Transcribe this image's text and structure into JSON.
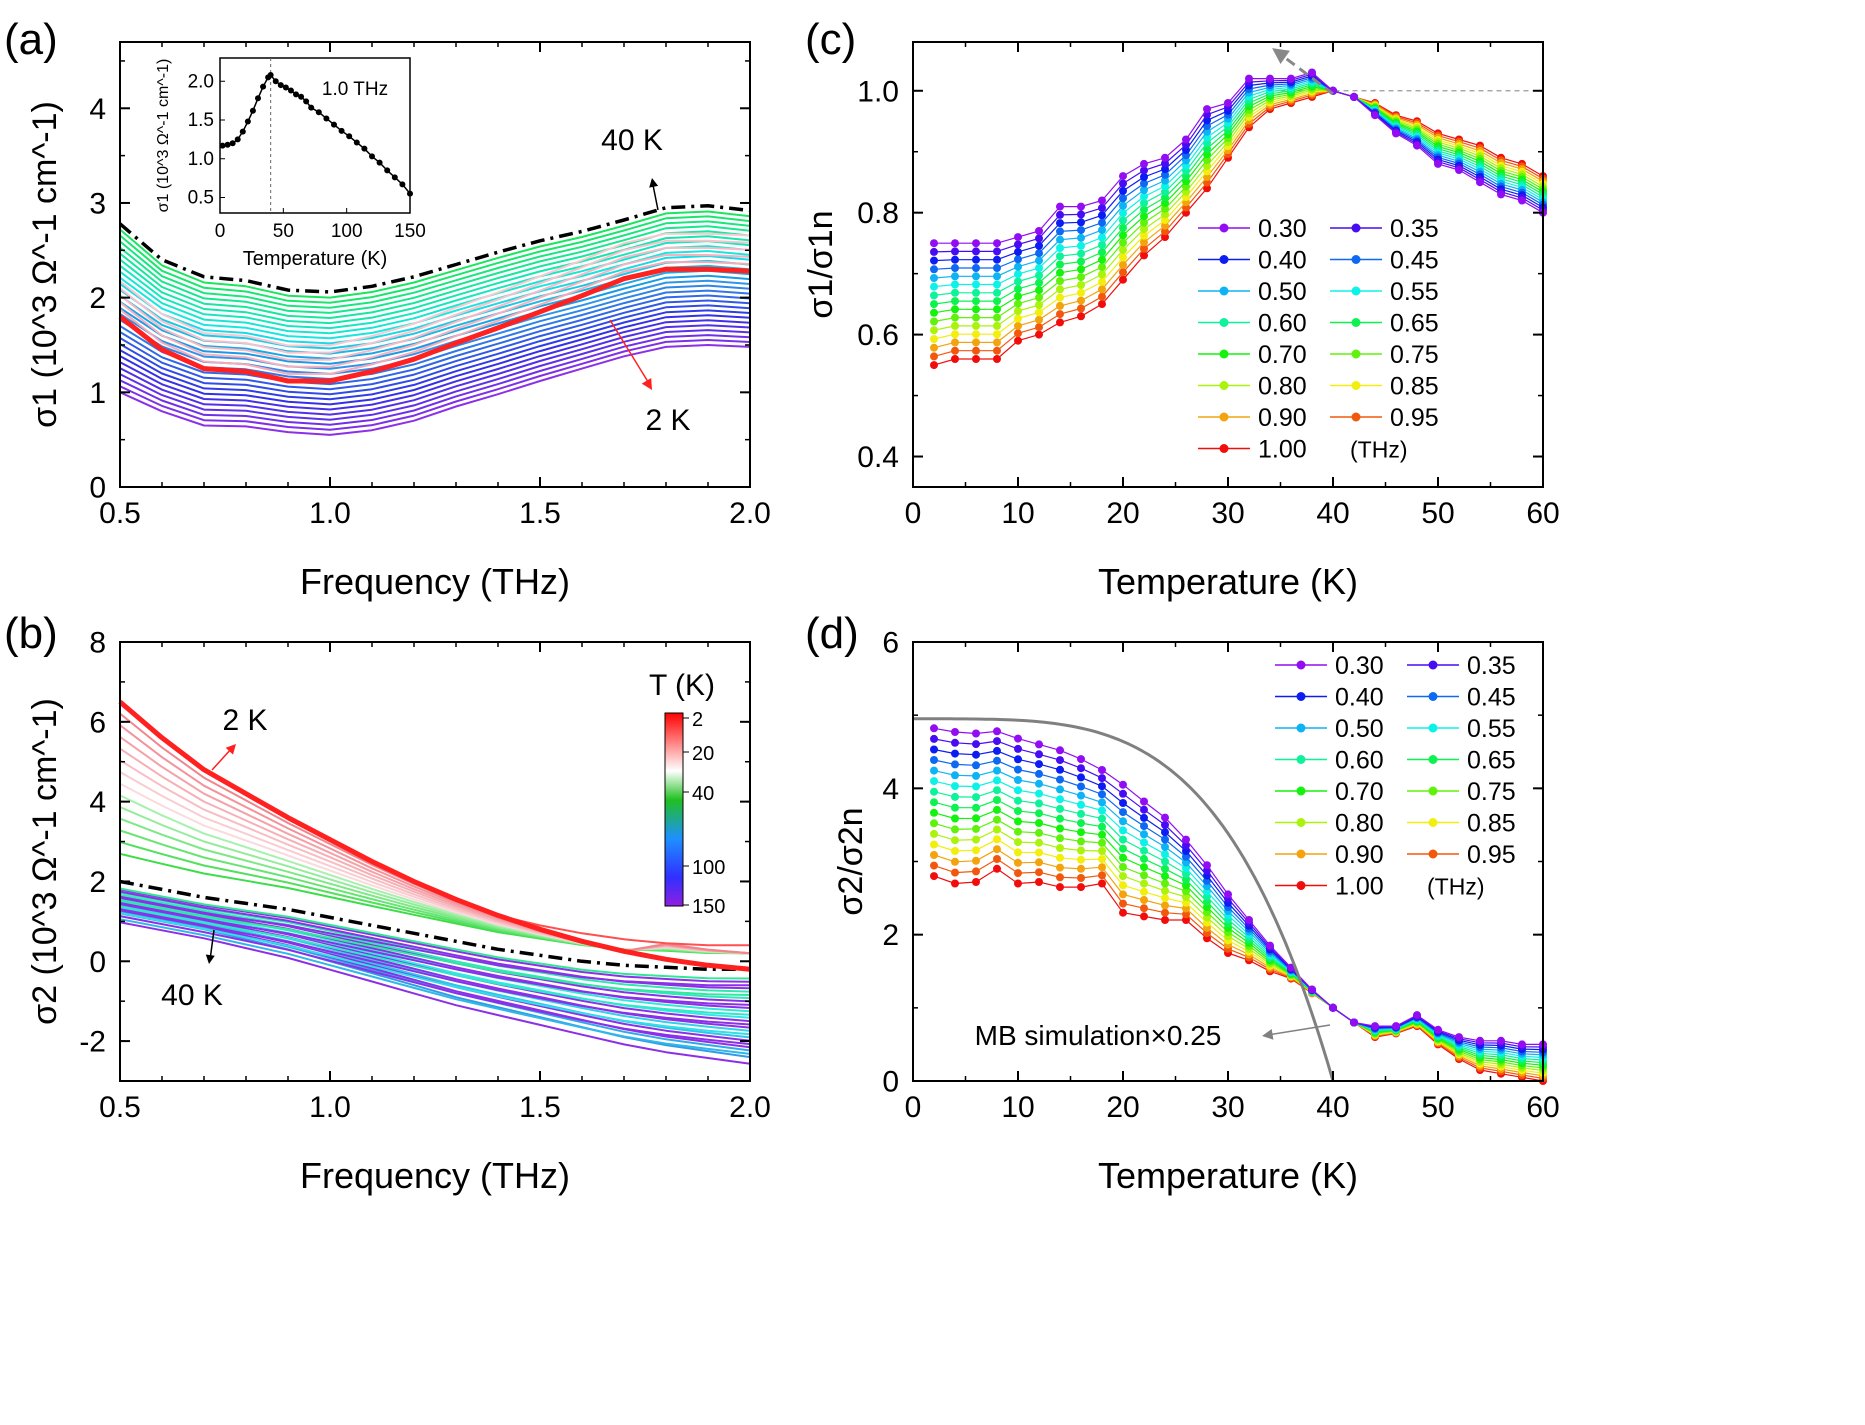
{
  "chart_data": [
    {
      "panel": "(a)",
      "type": "line",
      "xlabel": "Frequency (THz)",
      "ylabel": "σ1 (10^3 Ω^-1 cm^-1)",
      "xlim": [
        0.5,
        2.0
      ],
      "ylim": [
        0,
        4.7
      ],
      "xticks": [
        "0.5",
        "1.0",
        "1.5",
        "2.0"
      ],
      "yticks": [
        "0",
        "1",
        "2",
        "3",
        "4"
      ],
      "x": [
        0.5,
        0.6,
        0.7,
        0.8,
        0.9,
        1.0,
        1.1,
        1.2,
        1.3,
        1.4,
        1.5,
        1.6,
        1.7,
        1.8,
        1.9,
        2.0
      ],
      "series": [
        {
          "name": "2 K",
          "color": "#ff2020",
          "values": [
            1.8,
            1.45,
            1.25,
            1.22,
            1.12,
            1.12,
            1.22,
            1.35,
            1.52,
            1.68,
            1.85,
            2.02,
            2.2,
            2.3,
            2.3,
            2.28
          ]
        },
        {
          "name": "40 K",
          "color": "#000000",
          "values": [
            2.78,
            2.4,
            2.22,
            2.18,
            2.08,
            2.06,
            2.12,
            2.22,
            2.35,
            2.48,
            2.6,
            2.7,
            2.82,
            2.95,
            2.97,
            2.92
          ]
        },
        {
          "name": "150 K",
          "color": "#8a2be2",
          "values": [
            1.0,
            0.8,
            0.65,
            0.64,
            0.58,
            0.55,
            0.6,
            0.7,
            0.85,
            0.98,
            1.12,
            1.25,
            1.38,
            1.48,
            1.5,
            1.48
          ]
        }
      ],
      "labels": {
        "hot": "40 K",
        "cold": "2 K"
      },
      "inset": {
        "ylabel": "σ1 (10^3 Ω^-1 cm^-1)",
        "xlabel": "Temperature (K)",
        "annotation": "1.0 THz",
        "xlim": [
          0,
          150
        ],
        "ylim": [
          0.3,
          2.3
        ],
        "xticks": [
          "0",
          "50",
          "100",
          "150"
        ],
        "yticks": [
          "0.5",
          "1.0",
          "1.5",
          "2.0"
        ],
        "x": [
          2,
          6,
          10,
          14,
          18,
          22,
          26,
          30,
          34,
          38,
          40,
          44,
          48,
          52,
          56,
          60,
          64,
          68,
          72,
          78,
          84,
          90,
          96,
          102,
          108,
          114,
          120,
          126,
          132,
          138,
          144,
          150
        ],
        "values": [
          1.17,
          1.18,
          1.2,
          1.25,
          1.35,
          1.48,
          1.62,
          1.78,
          1.93,
          2.05,
          2.08,
          2.0,
          1.95,
          1.92,
          1.88,
          1.83,
          1.8,
          1.74,
          1.66,
          1.6,
          1.52,
          1.44,
          1.36,
          1.29,
          1.21,
          1.13,
          1.03,
          0.95,
          0.85,
          0.76,
          0.67,
          0.55
        ]
      }
    },
    {
      "panel": "(b)",
      "type": "line",
      "xlabel": "Frequency (THz)",
      "ylabel": "σ2 (10^3 Ω^-1 cm^-1)",
      "xlim": [
        0.5,
        2.0
      ],
      "ylim": [
        -3,
        8
      ],
      "xticks": [
        "0.5",
        "1.0",
        "1.5",
        "2.0"
      ],
      "yticks": [
        "-2",
        "0",
        "2",
        "4",
        "6",
        "8"
      ],
      "x": [
        0.5,
        0.6,
        0.7,
        0.8,
        0.9,
        1.0,
        1.1,
        1.2,
        1.3,
        1.4,
        1.5,
        1.6,
        1.7,
        1.8,
        1.9,
        2.0
      ],
      "series": [
        {
          "name": "2 K",
          "color": "#ff2020",
          "values": [
            6.5,
            5.6,
            4.8,
            4.2,
            3.6,
            3.05,
            2.5,
            2.0,
            1.55,
            1.15,
            0.8,
            0.5,
            0.25,
            0.05,
            -0.1,
            -0.2
          ]
        },
        {
          "name": "40 K",
          "color": "#000000",
          "values": [
            2.0,
            1.8,
            1.6,
            1.45,
            1.3,
            1.1,
            0.9,
            0.7,
            0.5,
            0.3,
            0.15,
            0.0,
            -0.1,
            -0.15,
            -0.2,
            -0.2
          ]
        },
        {
          "name": "150 K",
          "color": "#1e90ff",
          "values": [
            1.2,
            1.0,
            0.8,
            0.55,
            0.3,
            0.0,
            -0.3,
            -0.6,
            -0.9,
            -1.15,
            -1.4,
            -1.65,
            -1.9,
            -2.1,
            -2.25,
            -2.4
          ]
        }
      ],
      "labels": {
        "cold": "2 K",
        "hot": "40 K"
      },
      "colorbar": {
        "title": "T (K)",
        "ticks": [
          "2",
          "20",
          "40",
          "100",
          "150"
        ]
      }
    },
    {
      "panel": "(c)",
      "type": "line",
      "xlabel": "Temperature (K)",
      "ylabel": "σ1/σ1n",
      "xlim": [
        0,
        60
      ],
      "ylim": [
        0.35,
        1.08
      ],
      "xticks": [
        "0",
        "10",
        "20",
        "30",
        "40",
        "50",
        "60"
      ],
      "yticks": [
        "0.4",
        "0.6",
        "0.8",
        "1.0"
      ],
      "x": [
        2,
        4,
        6,
        8,
        10,
        12,
        14,
        16,
        18,
        20,
        22,
        24,
        26,
        28,
        30,
        32,
        34,
        36,
        38,
        40,
        42,
        44,
        46,
        48,
        50,
        52,
        54,
        56,
        58,
        60
      ],
      "series_first": {
        "name": "0.30",
        "values": [
          0.75,
          0.75,
          0.75,
          0.75,
          0.76,
          0.77,
          0.81,
          0.81,
          0.82,
          0.86,
          0.88,
          0.89,
          0.92,
          0.97,
          0.98,
          1.02,
          1.02,
          1.02,
          1.03,
          1.0,
          0.99,
          0.96,
          0.93,
          0.91,
          0.88,
          0.87,
          0.85,
          0.83,
          0.82,
          0.8
        ]
      },
      "series_last": {
        "name": "1.00",
        "values": [
          0.55,
          0.56,
          0.56,
          0.56,
          0.59,
          0.6,
          0.62,
          0.63,
          0.65,
          0.69,
          0.73,
          0.76,
          0.8,
          0.84,
          0.89,
          0.94,
          0.97,
          0.98,
          0.99,
          1.0,
          0.99,
          0.98,
          0.96,
          0.95,
          0.93,
          0.92,
          0.91,
          0.89,
          0.88,
          0.86
        ]
      },
      "legend": [
        "0.30",
        "0.35",
        "0.40",
        "0.45",
        "0.50",
        "0.55",
        "0.60",
        "0.65",
        "0.70",
        "0.75",
        "0.80",
        "0.85",
        "0.90",
        "0.95",
        "1.00"
      ],
      "legend_unit": "(THz)",
      "reference_line": 1.0
    },
    {
      "panel": "(d)",
      "type": "line",
      "xlabel": "Temperature (K)",
      "ylabel": "σ2/σ2n",
      "xlim": [
        0,
        60
      ],
      "ylim": [
        0,
        6
      ],
      "xticks": [
        "0",
        "10",
        "20",
        "30",
        "40",
        "50",
        "60"
      ],
      "yticks": [
        "0",
        "2",
        "4",
        "6"
      ],
      "x": [
        2,
        4,
        6,
        8,
        10,
        12,
        14,
        16,
        18,
        20,
        22,
        24,
        26,
        28,
        30,
        32,
        34,
        36,
        38,
        40,
        42,
        44,
        46,
        48,
        50,
        52,
        54,
        56,
        58,
        60
      ],
      "series_first": {
        "name": "0.30",
        "values": [
          4.82,
          4.77,
          4.75,
          4.78,
          4.68,
          4.6,
          4.52,
          4.4,
          4.25,
          4.05,
          3.82,
          3.6,
          3.3,
          2.95,
          2.55,
          2.2,
          1.85,
          1.55,
          1.25,
          1.0,
          0.8,
          0.75,
          0.75,
          0.9,
          0.7,
          0.6,
          0.55,
          0.55,
          0.5,
          0.5
        ]
      },
      "series_last": {
        "name": "1.00",
        "values": [
          2.8,
          2.7,
          2.72,
          2.9,
          2.7,
          2.72,
          2.65,
          2.65,
          2.7,
          2.3,
          2.25,
          2.2,
          2.2,
          1.95,
          1.75,
          1.65,
          1.5,
          1.4,
          1.2,
          1.0,
          0.8,
          0.6,
          0.65,
          0.75,
          0.5,
          0.3,
          0.15,
          0.1,
          0.05,
          0.0
        ]
      },
      "legend": [
        "0.30",
        "0.35",
        "0.40",
        "0.45",
        "0.50",
        "0.55",
        "0.60",
        "0.65",
        "0.70",
        "0.75",
        "0.80",
        "0.85",
        "0.90",
        "0.95",
        "1.00"
      ],
      "legend_unit": "(THz)",
      "mb_simulation": {
        "label": "MB simulation×0.25",
        "T0": 4.95,
        "Tc": 40
      }
    }
  ]
}
